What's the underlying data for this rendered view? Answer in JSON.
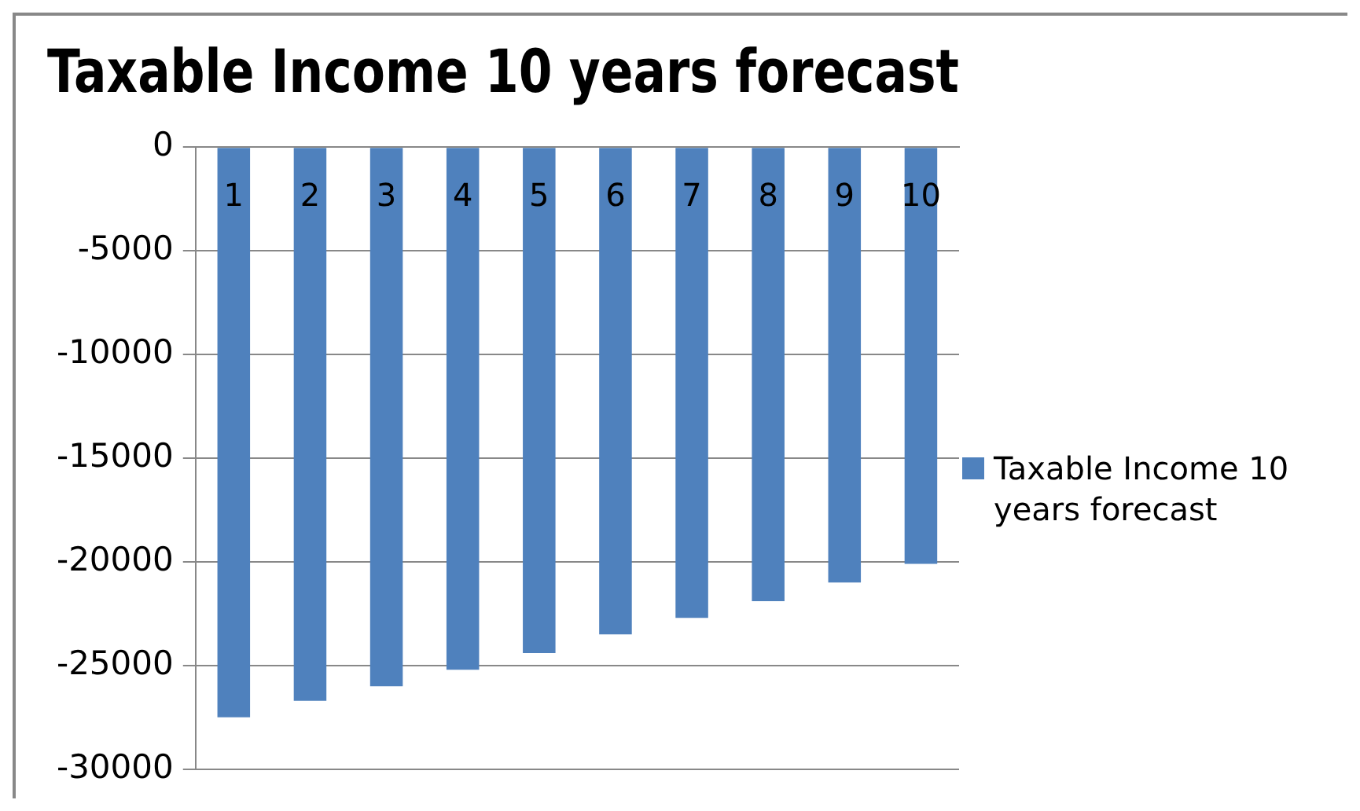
{
  "chart_data": {
    "type": "bar",
    "title": "Taxable Income 10 years forecast",
    "categories": [
      "1",
      "2",
      "3",
      "4",
      "5",
      "6",
      "7",
      "8",
      "9",
      "10"
    ],
    "series": [
      {
        "name": "Taxable Income 10 years forecast",
        "color": "#4f81bd",
        "values": [
          -27500,
          -26700,
          -26000,
          -25200,
          -24400,
          -23500,
          -22700,
          -21900,
          -21000,
          -20100
        ]
      }
    ],
    "ylim": [
      -30000,
      0
    ],
    "yticks": [
      -30000,
      -25000,
      -20000,
      -15000,
      -10000,
      -5000,
      0
    ],
    "grid": "y",
    "legend": "right"
  }
}
